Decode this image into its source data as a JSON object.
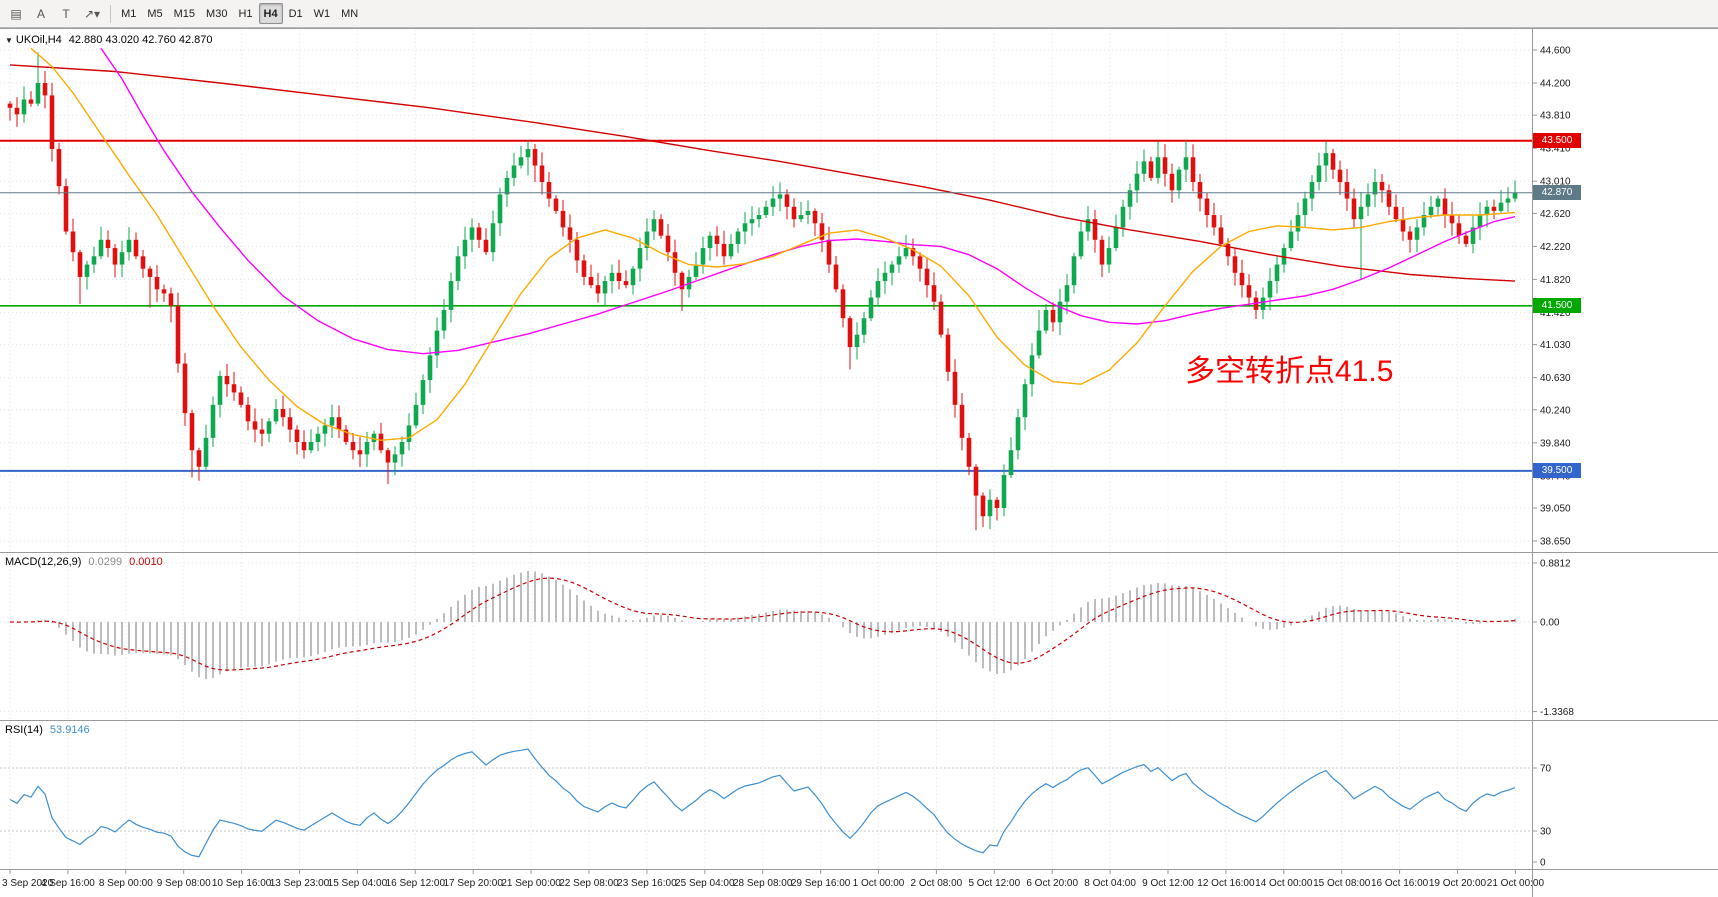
{
  "toolbar": {
    "left_tools": [
      {
        "name": "chart-window-icon",
        "glyph": "▤"
      },
      {
        "name": "text-label-a-button",
        "glyph": "A"
      },
      {
        "name": "text-label-t-button",
        "glyph": "T"
      },
      {
        "name": "draw-tools-dropdown",
        "glyph": "↗▾"
      }
    ],
    "timeframes": [
      {
        "label": "M1"
      },
      {
        "label": "M5"
      },
      {
        "label": "M15"
      },
      {
        "label": "M30"
      },
      {
        "label": "H1"
      },
      {
        "label": "H4"
      },
      {
        "label": "D1"
      },
      {
        "label": "W1"
      },
      {
        "label": "MN"
      }
    ],
    "active_timeframe": "H4"
  },
  "chart": {
    "title": {
      "marker": "▼",
      "symbol": "UKOil,H4",
      "ohlc": "42.880 43.020 42.760 42.870"
    },
    "annotation": {
      "text": "多空转折点41.5",
      "color": "#ff0000"
    },
    "price_axis": [
      "44.600",
      "44.200",
      "43.810",
      "43.410",
      "43.010",
      "42.620",
      "42.220",
      "41.820",
      "41.420",
      "41.030",
      "40.630",
      "40.240",
      "39.840",
      "39.440",
      "39.050",
      "38.650"
    ],
    "hlines": [
      {
        "value": 43.5,
        "label": "43.500",
        "color": "#e00000",
        "width": 2
      },
      {
        "value": 41.5,
        "label": "41.500",
        "color": "#00a800",
        "width": 1.6
      },
      {
        "value": 39.5,
        "label": "39.500",
        "color": "#3366cc",
        "width": 2
      }
    ],
    "current_price": {
      "value": 42.87,
      "label": "42.870",
      "color": "#5f7a87"
    }
  },
  "macd_panel": {
    "label": "MACD(12,26,9)",
    "value_main": "0.0299",
    "value_signal": "0.0010",
    "axis": [
      "0.8812",
      "0.00",
      "-1.3368"
    ]
  },
  "rsi_panel": {
    "label": "RSI(14)",
    "value": "53.9146",
    "levels": [
      70,
      30
    ],
    "axis": [
      "70",
      "30",
      "0"
    ]
  },
  "time_axis": {
    "labels": [
      "3 Sep 2020",
      "4 Sep 16:00",
      "8 Sep 00:00",
      "9 Sep 08:00",
      "10 Sep 16:00",
      "13 Sep 23:00",
      "15 Sep 04:00",
      "16 Sep 12:00",
      "17 Sep 20:00",
      "21 Sep 00:00",
      "22 Sep 08:00",
      "23 Sep 16:00",
      "25 Sep 04:00",
      "28 Sep 08:00",
      "29 Sep 16:00",
      "1 Oct 00:00",
      "2 Oct 08:00",
      "5 Oct 12:00",
      "6 Oct 20:00",
      "8 Oct 04:00",
      "9 Oct 12:00",
      "12 Oct 16:00",
      "14 Oct 00:00",
      "15 Oct 08:00",
      "16 Oct 16:00",
      "19 Oct 20:00",
      "21 Oct 00:00"
    ]
  },
  "chart_data": {
    "type": "candlestick",
    "symbol": "UKOil",
    "period": "H4",
    "ohlc_current": {
      "open": 42.88,
      "high": 43.02,
      "low": 42.76,
      "close": 42.87
    },
    "price_range": {
      "min": 38.65,
      "max": 44.6
    },
    "first_open": 43.95,
    "candles_close": [
      43.9,
      43.82,
      44.0,
      43.95,
      44.2,
      44.05,
      43.4,
      42.95,
      42.4,
      42.15,
      41.85,
      42.0,
      42.1,
      42.3,
      42.2,
      42.0,
      42.15,
      42.3,
      42.1,
      41.95,
      41.85,
      41.7,
      41.65,
      41.5,
      40.8,
      40.2,
      39.75,
      39.55,
      39.9,
      40.3,
      40.65,
      40.55,
      40.45,
      40.3,
      40.1,
      40.0,
      39.95,
      40.1,
      40.25,
      40.15,
      40.0,
      39.85,
      39.75,
      39.85,
      39.95,
      40.05,
      40.15,
      40.0,
      39.85,
      39.75,
      39.7,
      39.85,
      39.95,
      39.75,
      39.6,
      39.7,
      39.85,
      40.05,
      40.3,
      40.6,
      40.9,
      41.2,
      41.45,
      41.8,
      42.1,
      42.3,
      42.45,
      42.3,
      42.15,
      42.5,
      42.85,
      43.05,
      43.2,
      43.3,
      43.4,
      43.2,
      43.0,
      42.8,
      42.65,
      42.45,
      42.3,
      42.05,
      41.85,
      41.75,
      41.65,
      41.8,
      41.9,
      41.8,
      41.75,
      41.95,
      42.2,
      42.4,
      42.55,
      42.35,
      42.15,
      41.9,
      41.7,
      41.85,
      42.0,
      42.2,
      42.35,
      42.25,
      42.1,
      42.25,
      42.4,
      42.5,
      42.55,
      42.6,
      42.7,
      42.8,
      42.85,
      42.7,
      42.55,
      42.6,
      42.65,
      42.5,
      42.3,
      42.0,
      41.7,
      41.35,
      41.0,
      41.15,
      41.35,
      41.6,
      41.8,
      41.9,
      42.0,
      42.1,
      42.2,
      42.1,
      41.95,
      41.75,
      41.55,
      41.15,
      40.7,
      40.3,
      39.9,
      39.55,
      39.2,
      38.95,
      39.15,
      39.05,
      39.45,
      39.75,
      40.15,
      40.55,
      40.9,
      41.2,
      41.45,
      41.3,
      41.55,
      41.75,
      42.1,
      42.4,
      42.55,
      42.3,
      42.0,
      42.2,
      42.45,
      42.7,
      42.9,
      43.1,
      43.25,
      43.05,
      43.3,
      43.1,
      42.9,
      43.15,
      43.3,
      43.0,
      42.8,
      42.6,
      42.45,
      42.25,
      42.1,
      41.9,
      41.75,
      41.6,
      41.45,
      41.6,
      41.8,
      42.0,
      42.2,
      42.4,
      42.6,
      42.8,
      43.0,
      43.2,
      43.35,
      43.15,
      43.0,
      42.8,
      42.55,
      42.7,
      42.85,
      43.0,
      42.9,
      42.7,
      42.55,
      42.4,
      42.3,
      42.45,
      42.6,
      42.7,
      42.8,
      42.6,
      42.5,
      42.35,
      42.25,
      42.45,
      42.6,
      42.7,
      42.65,
      42.75,
      42.8,
      42.87
    ],
    "wick_overrides": {
      "4": [
        44.57,
        43.92
      ],
      "10": [
        42.18,
        41.52
      ],
      "20": [
        41.98,
        41.48
      ],
      "23": [
        41.72,
        41.3
      ],
      "26": [
        40.24,
        39.42
      ],
      "27": [
        39.78,
        39.38
      ],
      "54": [
        39.78,
        39.34
      ],
      "63": [
        41.9,
        41.3
      ],
      "74": [
        43.5,
        43.08
      ],
      "75": [
        43.46,
        43.0
      ],
      "96": [
        41.92,
        41.44
      ],
      "120": [
        41.38,
        40.73
      ],
      "138": [
        39.58,
        38.78
      ],
      "139": [
        39.24,
        38.82
      ],
      "147": [
        41.45,
        40.86
      ],
      "164": [
        43.49,
        42.98
      ],
      "168": [
        43.5,
        43.0
      ],
      "178": [
        41.68,
        41.34
      ],
      "188": [
        43.49,
        43.0
      ],
      "193": [
        42.88,
        41.82
      ],
      "215": [
        43.02,
        42.76
      ]
    },
    "ma_lines": [
      {
        "name": "ma-slow-red",
        "color": "#d40000",
        "points": [
          [
            0,
            44.42
          ],
          [
            15,
            44.34
          ],
          [
            30,
            44.2
          ],
          [
            45,
            44.05
          ],
          [
            60,
            43.9
          ],
          [
            75,
            43.72
          ],
          [
            88,
            43.55
          ],
          [
            100,
            43.38
          ],
          [
            110,
            43.25
          ],
          [
            120,
            43.1
          ],
          [
            130,
            42.95
          ],
          [
            140,
            42.78
          ],
          [
            150,
            42.58
          ],
          [
            160,
            42.42
          ],
          [
            170,
            42.28
          ],
          [
            180,
            42.12
          ],
          [
            190,
            41.98
          ],
          [
            200,
            41.88
          ],
          [
            208,
            41.83
          ],
          [
            215,
            41.8
          ]
        ]
      },
      {
        "name": "ma-medium-magenta",
        "color": "#ff00ff",
        "points": [
          [
            13,
            44.62
          ],
          [
            16,
            44.25
          ],
          [
            19,
            43.8
          ],
          [
            22,
            43.38
          ],
          [
            26,
            42.88
          ],
          [
            30,
            42.45
          ],
          [
            34,
            42.05
          ],
          [
            39,
            41.62
          ],
          [
            44,
            41.32
          ],
          [
            49,
            41.1
          ],
          [
            54,
            40.97
          ],
          [
            59,
            40.92
          ],
          [
            64,
            40.96
          ],
          [
            69,
            41.06
          ],
          [
            74,
            41.16
          ],
          [
            79,
            41.28
          ],
          [
            84,
            41.4
          ],
          [
            89,
            41.54
          ],
          [
            94,
            41.68
          ],
          [
            99,
            41.83
          ],
          [
            104,
            41.98
          ],
          [
            109,
            42.12
          ],
          [
            113,
            42.22
          ],
          [
            117,
            42.29
          ],
          [
            121,
            42.31
          ],
          [
            125,
            42.28
          ],
          [
            129,
            42.24
          ],
          [
            133,
            42.22
          ],
          [
            137,
            42.12
          ],
          [
            141,
            41.95
          ],
          [
            145,
            41.72
          ],
          [
            149,
            41.52
          ],
          [
            153,
            41.38
          ],
          [
            157,
            41.3
          ],
          [
            161,
            41.28
          ],
          [
            165,
            41.32
          ],
          [
            169,
            41.4
          ],
          [
            173,
            41.47
          ],
          [
            177,
            41.52
          ],
          [
            181,
            41.57
          ],
          [
            185,
            41.62
          ],
          [
            189,
            41.7
          ],
          [
            193,
            41.82
          ],
          [
            197,
            41.96
          ],
          [
            201,
            42.12
          ],
          [
            205,
            42.28
          ],
          [
            209,
            42.42
          ],
          [
            212,
            42.52
          ],
          [
            215,
            42.58
          ]
        ]
      },
      {
        "name": "ma-fast-orange",
        "color": "#ffaa00",
        "points": [
          [
            3,
            44.62
          ],
          [
            6,
            44.4
          ],
          [
            9,
            44.08
          ],
          [
            13,
            43.58
          ],
          [
            17,
            43.08
          ],
          [
            21,
            42.6
          ],
          [
            25,
            42.05
          ],
          [
            29,
            41.5
          ],
          [
            33,
            41.0
          ],
          [
            37,
            40.6
          ],
          [
            41,
            40.28
          ],
          [
            45,
            40.06
          ],
          [
            49,
            39.94
          ],
          [
            53,
            39.87
          ],
          [
            57,
            39.9
          ],
          [
            61,
            40.12
          ],
          [
            65,
            40.55
          ],
          [
            69,
            41.1
          ],
          [
            73,
            41.65
          ],
          [
            77,
            42.08
          ],
          [
            81,
            42.32
          ],
          [
            85,
            42.42
          ],
          [
            89,
            42.32
          ],
          [
            93,
            42.14
          ],
          [
            97,
            42.0
          ],
          [
            101,
            41.97
          ],
          [
            105,
            42.01
          ],
          [
            109,
            42.1
          ],
          [
            113,
            42.24
          ],
          [
            117,
            42.38
          ],
          [
            121,
            42.42
          ],
          [
            125,
            42.32
          ],
          [
            129,
            42.18
          ],
          [
            133,
            41.98
          ],
          [
            137,
            41.62
          ],
          [
            141,
            41.12
          ],
          [
            145,
            40.78
          ],
          [
            149,
            40.58
          ],
          [
            153,
            40.55
          ],
          [
            157,
            40.72
          ],
          [
            161,
            41.05
          ],
          [
            165,
            41.5
          ],
          [
            169,
            41.92
          ],
          [
            173,
            42.22
          ],
          [
            177,
            42.4
          ],
          [
            181,
            42.47
          ],
          [
            185,
            42.45
          ],
          [
            189,
            42.42
          ],
          [
            193,
            42.45
          ],
          [
            197,
            42.52
          ],
          [
            201,
            42.57
          ],
          [
            205,
            42.6
          ],
          [
            210,
            42.6
          ],
          [
            215,
            42.63
          ]
        ]
      }
    ],
    "macd": {
      "params": [
        12,
        26,
        9
      ],
      "last_main": 0.0299,
      "last_signal": 0.001,
      "range": [
        -1.3368,
        0.8812
      ]
    },
    "rsi": {
      "period": 14,
      "last": 53.9146,
      "levels": [
        70,
        30
      ]
    }
  },
  "colors": {
    "bull": "#0fa84e",
    "bear": "#e01010",
    "grid": "#e4e4e4",
    "separator": "#9a9a9a",
    "macd_hist": "#bdbdbd",
    "macd_signal": "#cc0000",
    "rsi": "#3d8fd1",
    "axis_text": "#1a1a1a"
  }
}
